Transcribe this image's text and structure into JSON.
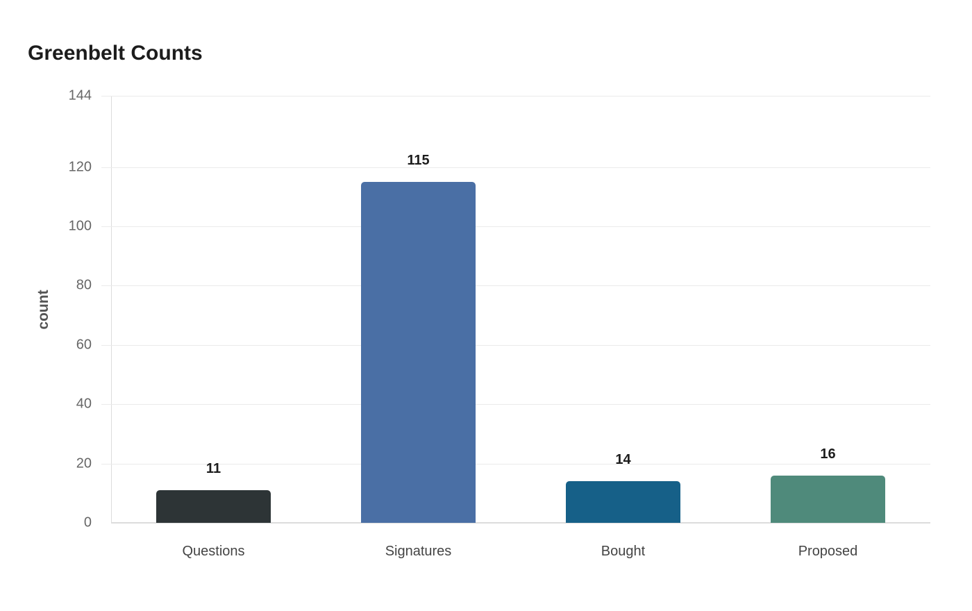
{
  "chart_data": {
    "type": "bar",
    "title": "Greenbelt Counts",
    "xlabel": "",
    "ylabel": "count",
    "categories": [
      "Questions",
      "Signatures",
      "Bought",
      "Proposed"
    ],
    "values": [
      11,
      115,
      14,
      16
    ],
    "colors": [
      "#2d3436",
      "#4a6fa5",
      "#166088",
      "#4f8a7b"
    ],
    "ylim": [
      0,
      144
    ],
    "yticks": [
      0,
      20,
      40,
      60,
      80,
      100,
      120,
      144
    ],
    "grid": true,
    "legend": null,
    "data_labels": true
  }
}
